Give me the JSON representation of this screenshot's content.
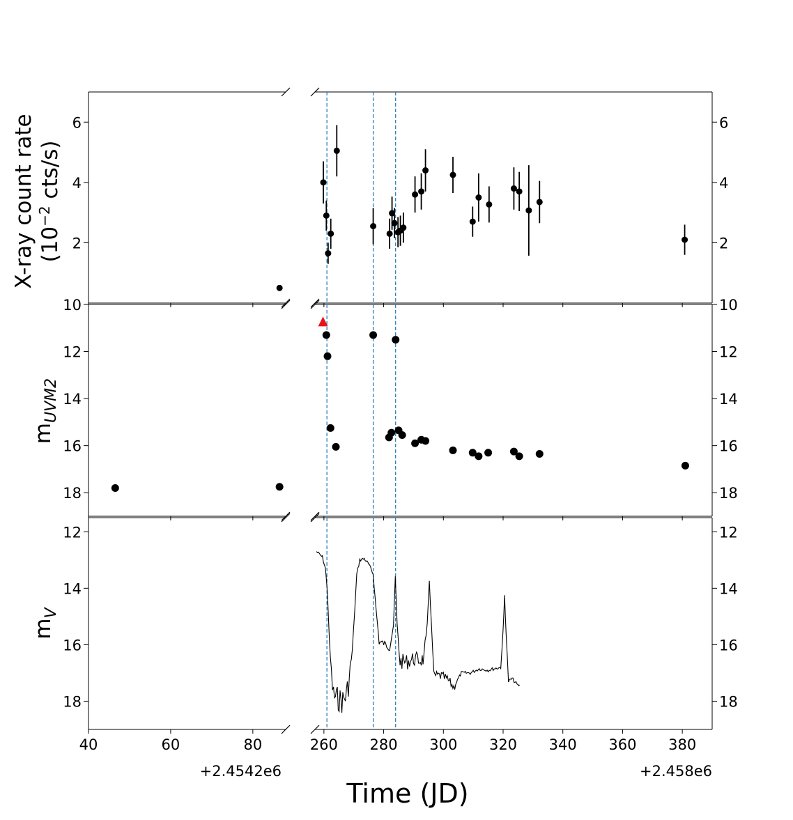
{
  "chart_data": {
    "type": "scatter",
    "layout": "3 rows x 2 broken x-axis panels with shared x",
    "xlabel": "Time (JD)",
    "x_offsets": {
      "left": "+2.4542e6",
      "right": "+2.458e6"
    },
    "x_left": {
      "range": [
        40,
        88
      ],
      "ticks": [
        "40",
        "60",
        "80"
      ]
    },
    "x_right": {
      "range": [
        257,
        390
      ],
      "ticks": [
        "260",
        "280",
        "300",
        "320",
        "340",
        "360",
        "380"
      ]
    },
    "vlines_x_right": [
      261,
      276.5,
      284
    ],
    "panels": [
      {
        "ylabel": "X-ray count rate",
        "ylabel_line2": "(10",
        "ylabel_exponent": "−2",
        "ylabel_line2_end": " cts/s)",
        "ylim": [
          0,
          7
        ],
        "inverted": false,
        "yticks": [
          {
            "v": 2,
            "label": "2"
          },
          {
            "v": 4,
            "label": "4"
          },
          {
            "v": 6,
            "label": "6"
          }
        ],
        "left_points": [
          {
            "x": 86.5,
            "y": 0.5,
            "err": 0.1
          }
        ],
        "right_points": [
          {
            "x": 259.8,
            "y": 4.0,
            "err": 0.7
          },
          {
            "x": 260.8,
            "y": 2.9,
            "err": 0.5
          },
          {
            "x": 261.4,
            "y": 1.65,
            "err": 0.35
          },
          {
            "x": 262.3,
            "y": 2.3,
            "err": 0.5
          },
          {
            "x": 264.3,
            "y": 5.05,
            "err": 0.85
          },
          {
            "x": 276.5,
            "y": 2.55,
            "err": 0.6
          },
          {
            "x": 282.0,
            "y": 2.3,
            "err": 0.5
          },
          {
            "x": 282.8,
            "y": 2.98,
            "err": 0.55
          },
          {
            "x": 283.6,
            "y": 2.65,
            "err": 0.5
          },
          {
            "x": 284.8,
            "y": 2.35,
            "err": 0.5
          },
          {
            "x": 285.6,
            "y": 2.4,
            "err": 0.5
          },
          {
            "x": 286.6,
            "y": 2.5,
            "err": 0.5
          },
          {
            "x": 290.5,
            "y": 3.6,
            "err": 0.6
          },
          {
            "x": 292.6,
            "y": 3.7,
            "err": 0.6
          },
          {
            "x": 294.0,
            "y": 4.4,
            "err": 0.7
          },
          {
            "x": 303.2,
            "y": 4.25,
            "err": 0.6
          },
          {
            "x": 309.8,
            "y": 2.7,
            "err": 0.5
          },
          {
            "x": 311.8,
            "y": 3.5,
            "err": 0.8
          },
          {
            "x": 315.3,
            "y": 3.27,
            "err": 0.6
          },
          {
            "x": 323.6,
            "y": 3.8,
            "err": 0.7
          },
          {
            "x": 325.4,
            "y": 3.7,
            "err": 0.65
          },
          {
            "x": 328.6,
            "y": 3.07,
            "err": 1.5
          },
          {
            "x": 332.2,
            "y": 3.35,
            "err": 0.7
          },
          {
            "x": 380.8,
            "y": 2.1,
            "err": 0.5
          }
        ]
      },
      {
        "ylabel": "m",
        "ylabel_sub": "UVM2",
        "ylim": [
          10,
          19
        ],
        "inverted": true,
        "yticks": [
          {
            "v": 10,
            "label": "10"
          },
          {
            "v": 12,
            "label": "12"
          },
          {
            "v": 14,
            "label": "14"
          },
          {
            "v": 16,
            "label": "16"
          },
          {
            "v": 18,
            "label": "18"
          }
        ],
        "left_points": [
          {
            "x": 46.5,
            "y": 17.8
          },
          {
            "x": 86.5,
            "y": 17.75
          }
        ],
        "right_points": [
          {
            "x": 260.8,
            "y": 11.3
          },
          {
            "x": 261.2,
            "y": 12.2
          },
          {
            "x": 262.2,
            "y": 15.25
          },
          {
            "x": 264.0,
            "y": 16.05
          },
          {
            "x": 276.5,
            "y": 11.3
          },
          {
            "x": 281.8,
            "y": 15.65
          },
          {
            "x": 282.6,
            "y": 15.45
          },
          {
            "x": 284.0,
            "y": 11.5
          },
          {
            "x": 285.0,
            "y": 15.35
          },
          {
            "x": 286.2,
            "y": 15.55
          },
          {
            "x": 290.5,
            "y": 15.9
          },
          {
            "x": 292.6,
            "y": 15.75
          },
          {
            "x": 294.0,
            "y": 15.8
          },
          {
            "x": 303.2,
            "y": 16.2
          },
          {
            "x": 309.8,
            "y": 16.3
          },
          {
            "x": 311.8,
            "y": 16.45
          },
          {
            "x": 315.0,
            "y": 16.3
          },
          {
            "x": 323.6,
            "y": 16.25
          },
          {
            "x": 325.4,
            "y": 16.45
          },
          {
            "x": 332.2,
            "y": 16.35
          },
          {
            "x": 381.0,
            "y": 16.85
          }
        ],
        "upper_limit_marker": {
          "x": 259.7,
          "y": 10.75,
          "color": "#e8141c"
        }
      },
      {
        "ylabel": "m",
        "ylabel_sub": "V",
        "ylim": [
          11.5,
          19
        ],
        "inverted": true,
        "yticks": [
          {
            "v": 12,
            "label": "12"
          },
          {
            "v": 14,
            "label": "14"
          },
          {
            "v": 16,
            "label": "16"
          },
          {
            "v": 18,
            "label": "18"
          }
        ],
        "line_keypoints": [
          [
            257.5,
            12.7
          ],
          [
            259.5,
            12.9
          ],
          [
            260.5,
            13.3
          ],
          [
            261.2,
            14.2
          ],
          [
            261.8,
            15.8
          ],
          [
            262.5,
            17.1
          ],
          [
            263.2,
            17.8
          ],
          [
            264.5,
            17.9
          ],
          [
            266.0,
            18.0
          ],
          [
            267.5,
            17.8
          ],
          [
            268.5,
            17.2
          ],
          [
            269.5,
            16.2
          ],
          [
            270.3,
            14.8
          ],
          [
            271.0,
            13.5
          ],
          [
            272.0,
            13.0
          ],
          [
            273.5,
            12.95
          ],
          [
            275.0,
            13.15
          ],
          [
            276.5,
            13.5
          ],
          [
            277.5,
            14.8
          ],
          [
            278.5,
            15.9
          ],
          [
            280.0,
            15.95
          ],
          [
            282.0,
            16.1
          ],
          [
            283.3,
            15.3
          ],
          [
            283.9,
            13.6
          ],
          [
            284.5,
            15.3
          ],
          [
            285.5,
            16.6
          ],
          [
            288.0,
            16.6
          ],
          [
            290.0,
            16.5
          ],
          [
            292.0,
            16.55
          ],
          [
            293.5,
            16.5
          ],
          [
            294.6,
            15.3
          ],
          [
            295.3,
            13.7
          ],
          [
            296.0,
            15.3
          ],
          [
            296.8,
            17.1
          ],
          [
            299.0,
            17.1
          ],
          [
            301.0,
            17.2
          ],
          [
            303.5,
            17.5
          ],
          [
            306.0,
            17.0
          ],
          [
            309.0,
            17.0
          ],
          [
            312.0,
            16.85
          ],
          [
            315.0,
            16.9
          ],
          [
            317.0,
            16.85
          ],
          [
            319.2,
            16.8
          ],
          [
            320.0,
            15.5
          ],
          [
            320.5,
            14.25
          ],
          [
            321.0,
            15.6
          ],
          [
            321.8,
            17.3
          ],
          [
            323.0,
            17.2
          ],
          [
            325.0,
            17.45
          ],
          [
            325.5,
            17.42
          ]
        ]
      }
    ]
  }
}
